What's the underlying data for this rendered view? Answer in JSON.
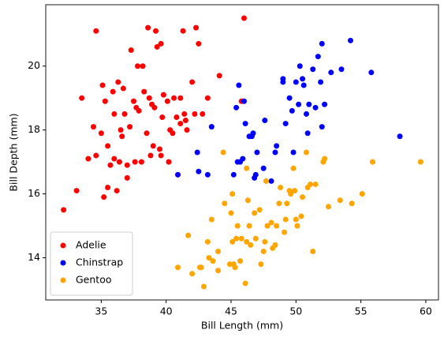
{
  "chart_data": {
    "type": "scatter",
    "xlabel": "Bill Length (mm)",
    "ylabel": "Bill Depth (mm)",
    "xlim": [
      30.725,
      60.975
    ],
    "ylim": [
      12.68,
      21.92
    ],
    "xticks": [
      35,
      40,
      45,
      50,
      55,
      60
    ],
    "yticks": [
      14,
      16,
      18,
      20
    ],
    "legend": "lower left",
    "series": [
      {
        "name": "Adelie",
        "color": "#ff0000",
        "x": [
          32.1,
          33.1,
          33.5,
          34.0,
          34.4,
          34.6,
          34.6,
          35.0,
          35.1,
          35.2,
          35.3,
          35.5,
          35.5,
          35.7,
          35.9,
          36.0,
          36.2,
          36.3,
          36.4,
          36.5,
          36.6,
          36.7,
          36.8,
          37.0,
          37.2,
          37.3,
          37.5,
          37.6,
          37.7,
          37.8,
          37.9,
          38.1,
          38.2,
          38.3,
          38.6,
          38.7,
          38.8,
          38.9,
          39.0,
          39.1,
          39.2,
          39.5,
          39.6,
          39.7,
          39.8,
          40.1,
          40.2,
          40.3,
          40.6,
          40.8,
          40.9,
          41.1,
          41.1,
          41.3,
          41.4,
          41.5,
          41.6,
          42.0,
          42.2,
          42.3,
          42.5,
          42.8,
          43.2,
          44.1,
          45.8,
          46.0,
          39.6,
          40.5,
          37.0,
          36.0,
          38.5,
          39.3
        ],
        "values": [
          15.5,
          16.1,
          19.0,
          17.1,
          18.1,
          21.1,
          17.2,
          17.9,
          19.4,
          15.9,
          18.9,
          16.2,
          17.5,
          16.9,
          19.2,
          17.1,
          16.1,
          19.5,
          17.0,
          18.0,
          17.8,
          19.3,
          18.5,
          16.5,
          18.1,
          20.5,
          18.9,
          17.0,
          18.7,
          20.0,
          18.6,
          17.0,
          20.0,
          19.2,
          21.2,
          19.0,
          17.2,
          18.8,
          17.5,
          18.7,
          21.1,
          17.4,
          20.7,
          18.4,
          19.1,
          18.9,
          17.0,
          18.0,
          19.0,
          18.4,
          16.6,
          19.0,
          18.2,
          21.1,
          18.5,
          18.3,
          18.0,
          19.5,
          18.5,
          21.2,
          20.7,
          18.5,
          19.0,
          19.7,
          18.9,
          21.5,
          17.2,
          17.9,
          16.9,
          18.5,
          17.9,
          20.6
        ]
      },
      {
        "name": "Chinstrap",
        "color": "#0000ff",
        "x": [
          40.9,
          42.4,
          42.5,
          43.2,
          43.5,
          45.2,
          45.4,
          45.5,
          45.6,
          45.7,
          46.0,
          46.1,
          46.4,
          46.6,
          46.8,
          46.9,
          47.0,
          47.5,
          48.1,
          48.5,
          49.0,
          49.2,
          49.5,
          49.7,
          49.8,
          50.0,
          50.2,
          50.3,
          50.5,
          50.6,
          50.8,
          51.0,
          51.3,
          51.5,
          51.7,
          51.9,
          52.0,
          52.0,
          52.2,
          52.7,
          53.5,
          54.2,
          55.8,
          58.0,
          49.0,
          47.6,
          45.9,
          46.7,
          50.9,
          48.4
        ],
        "values": [
          16.6,
          17.3,
          16.7,
          16.6,
          18.1,
          16.6,
          18.7,
          17.0,
          19.4,
          17.0,
          18.9,
          18.2,
          17.8,
          17.8,
          16.5,
          16.6,
          17.3,
          16.8,
          16.4,
          17.5,
          19.5,
          18.2,
          19.0,
          18.6,
          17.3,
          19.5,
          18.8,
          20.0,
          19.6,
          19.4,
          18.5,
          18.8,
          19.9,
          18.7,
          20.3,
          19.5,
          18.1,
          20.7,
          18.8,
          19.8,
          19.9,
          20.8,
          19.8,
          17.8,
          19.6,
          18.3,
          17.1,
          17.9,
          17.9,
          17.3
        ]
      },
      {
        "name": "Gentoo",
        "color": "#ffa500",
        "x": [
          40.9,
          41.7,
          42.0,
          42.6,
          42.7,
          42.9,
          43.2,
          43.3,
          43.5,
          43.6,
          44.0,
          44.4,
          44.5,
          44.9,
          45.0,
          45.1,
          45.2,
          45.3,
          45.4,
          45.5,
          45.7,
          45.8,
          46.1,
          46.2,
          46.3,
          46.4,
          46.5,
          46.8,
          46.9,
          47.2,
          47.3,
          47.5,
          47.6,
          47.8,
          48.1,
          48.2,
          48.4,
          48.5,
          48.7,
          49.1,
          49.2,
          49.3,
          49.5,
          49.8,
          49.9,
          50.0,
          50.1,
          50.4,
          50.5,
          50.8,
          50.9,
          51.1,
          51.3,
          51.5,
          52.1,
          52.2,
          52.5,
          53.4,
          54.3,
          55.1,
          55.9,
          59.6,
          46.2,
          47.7,
          45.1,
          44.0,
          48.8,
          49.6
        ],
        "values": [
          13.7,
          14.7,
          13.5,
          13.7,
          13.7,
          13.1,
          14.5,
          14.0,
          15.2,
          13.9,
          13.6,
          17.3,
          15.7,
          13.8,
          15.4,
          14.5,
          13.8,
          13.7,
          14.6,
          15.0,
          13.9,
          14.6,
          13.2,
          14.5,
          15.8,
          15.0,
          14.4,
          15.4,
          14.6,
          15.5,
          13.8,
          14.2,
          14.5,
          15.0,
          15.1,
          14.3,
          14.4,
          15.0,
          15.7,
          14.8,
          15.2,
          15.7,
          16.1,
          16.8,
          16.1,
          15.2,
          15.0,
          15.3,
          15.9,
          17.3,
          16.2,
          16.3,
          14.2,
          16.3,
          17.0,
          17.1,
          15.6,
          15.8,
          15.7,
          16.0,
          17.0,
          17.0,
          16.8,
          16.4,
          16.0,
          14.2,
          16.2,
          16.0
        ]
      }
    ]
  }
}
